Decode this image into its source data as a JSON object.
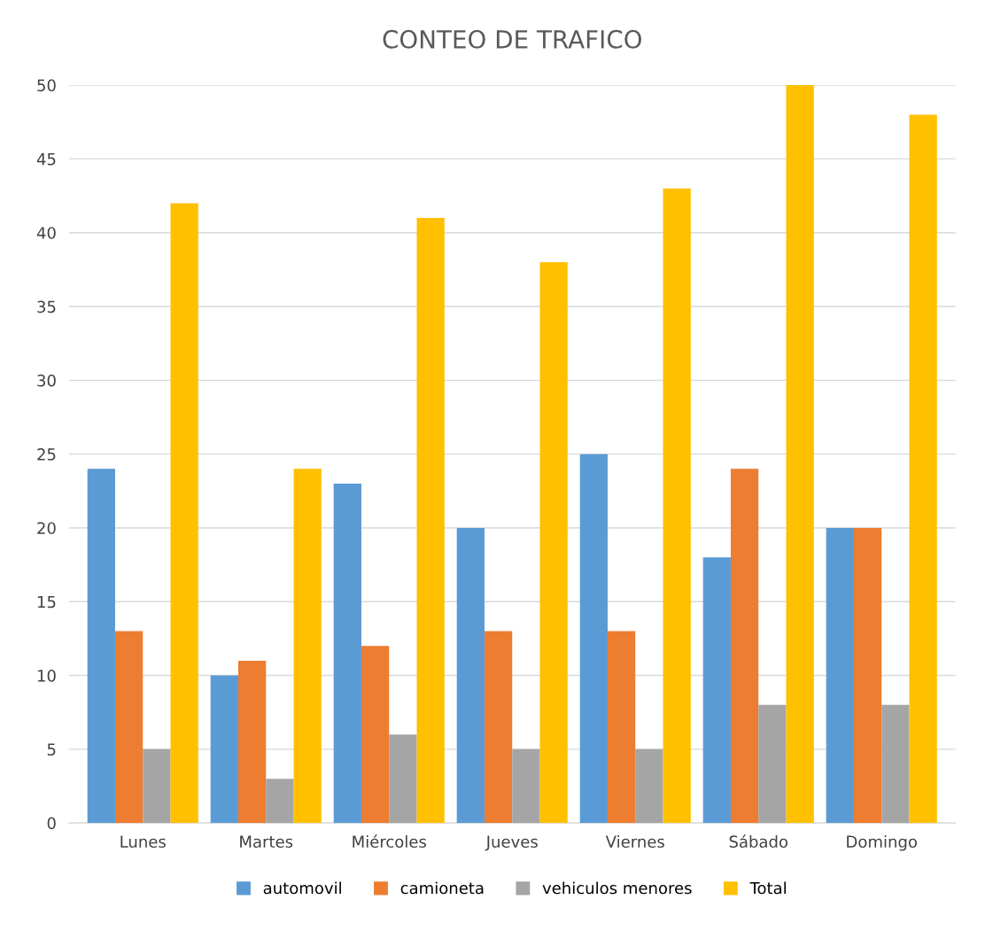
{
  "chart_data": {
    "type": "bar",
    "title": "CONTEO DE TRAFICO",
    "categories": [
      "Lunes",
      "Martes",
      "Miércoles",
      "Jueves",
      "Viernes",
      "Sábado",
      "Domingo"
    ],
    "series": [
      {
        "name": "automovil",
        "color": "#5b9bd5",
        "values": [
          24,
          10,
          23,
          20,
          25,
          18,
          20
        ]
      },
      {
        "name": "camioneta",
        "color": "#ed7d31",
        "values": [
          13,
          11,
          12,
          13,
          13,
          24,
          20
        ]
      },
      {
        "name": "vehiculos menores",
        "color": "#a5a5a5",
        "values": [
          5,
          3,
          6,
          5,
          5,
          8,
          8
        ]
      },
      {
        "name": "Total",
        "color": "#ffc000",
        "values": [
          42,
          24,
          41,
          38,
          43,
          50,
          48
        ]
      }
    ],
    "ylim": [
      0,
      50
    ],
    "yticks": [
      0,
      5,
      10,
      15,
      20,
      25,
      30,
      35,
      40,
      45,
      50
    ],
    "grid": "y",
    "legend": "bottom"
  }
}
